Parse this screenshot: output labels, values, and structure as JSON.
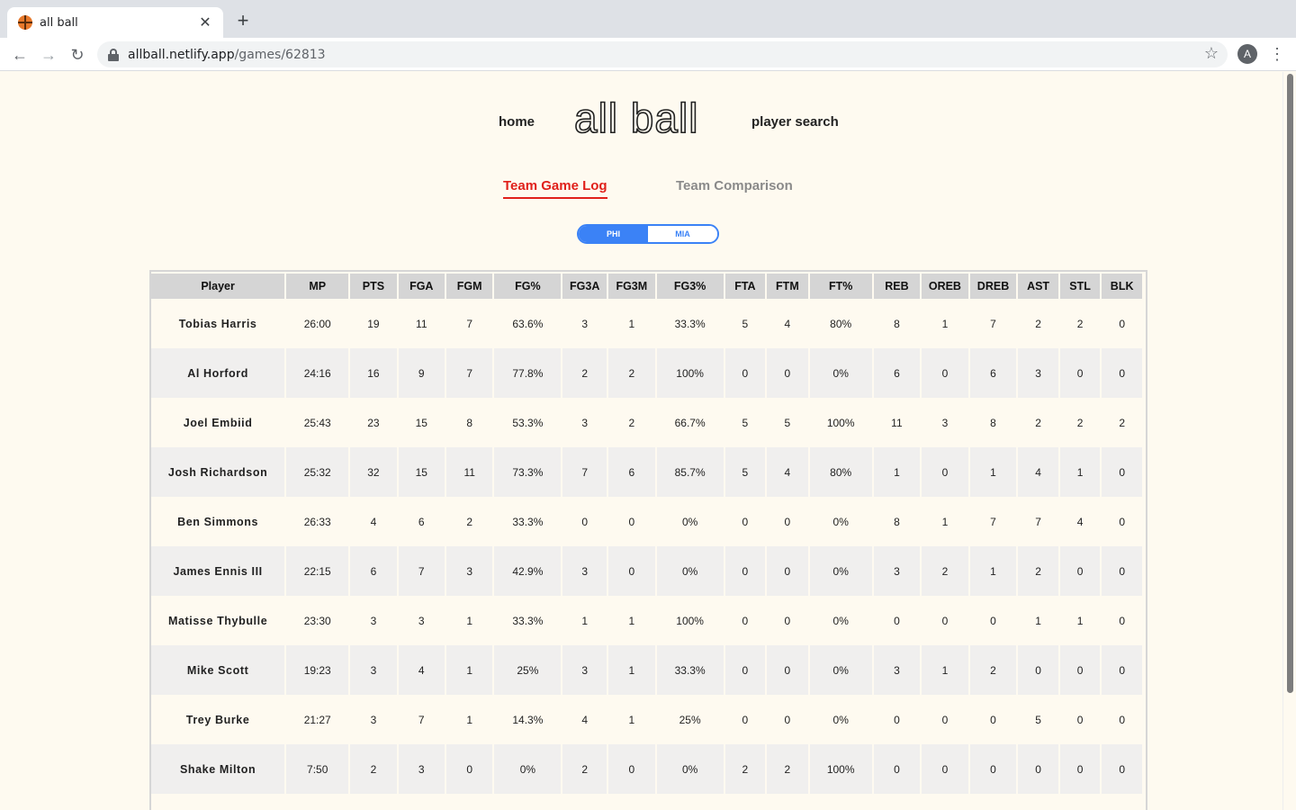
{
  "browser": {
    "tab_title": "all ball",
    "url_host": "allball.netlify.app",
    "url_path": "/games/62813",
    "avatar_letter": "A"
  },
  "header": {
    "home": "home",
    "logo": "all ball",
    "player_search": "player search"
  },
  "views": {
    "active": "Team Game Log",
    "inactive": "Team Comparison"
  },
  "toggle": {
    "selected": "PHI",
    "other": "MIA"
  },
  "table": {
    "columns": [
      "Player",
      "MP",
      "PTS",
      "FGA",
      "FGM",
      "FG%",
      "FG3A",
      "FG3M",
      "FG3%",
      "FTA",
      "FTM",
      "FT%",
      "REB",
      "OREB",
      "DREB",
      "AST",
      "STL",
      "BLK"
    ],
    "rows": [
      [
        "Tobias Harris",
        "26:00",
        "19",
        "11",
        "7",
        "63.6%",
        "3",
        "1",
        "33.3%",
        "5",
        "4",
        "80%",
        "8",
        "1",
        "7",
        "2",
        "2",
        "0"
      ],
      [
        "Al Horford",
        "24:16",
        "16",
        "9",
        "7",
        "77.8%",
        "2",
        "2",
        "100%",
        "0",
        "0",
        "0%",
        "6",
        "0",
        "6",
        "3",
        "0",
        "0"
      ],
      [
        "Joel Embiid",
        "25:43",
        "23",
        "15",
        "8",
        "53.3%",
        "3",
        "2",
        "66.7%",
        "5",
        "5",
        "100%",
        "11",
        "3",
        "8",
        "2",
        "2",
        "2"
      ],
      [
        "Josh Richardson",
        "25:32",
        "32",
        "15",
        "11",
        "73.3%",
        "7",
        "6",
        "85.7%",
        "5",
        "4",
        "80%",
        "1",
        "0",
        "1",
        "4",
        "1",
        "0"
      ],
      [
        "Ben Simmons",
        "26:33",
        "4",
        "6",
        "2",
        "33.3%",
        "0",
        "0",
        "0%",
        "0",
        "0",
        "0%",
        "8",
        "1",
        "7",
        "7",
        "4",
        "0"
      ],
      [
        "James Ennis III",
        "22:15",
        "6",
        "7",
        "3",
        "42.9%",
        "3",
        "0",
        "0%",
        "0",
        "0",
        "0%",
        "3",
        "2",
        "1",
        "2",
        "0",
        "0"
      ],
      [
        "Matisse Thybulle",
        "23:30",
        "3",
        "3",
        "1",
        "33.3%",
        "1",
        "1",
        "100%",
        "0",
        "0",
        "0%",
        "0",
        "0",
        "0",
        "1",
        "1",
        "0"
      ],
      [
        "Mike Scott",
        "19:23",
        "3",
        "4",
        "1",
        "25%",
        "3",
        "1",
        "33.3%",
        "0",
        "0",
        "0%",
        "3",
        "1",
        "2",
        "0",
        "0",
        "0"
      ],
      [
        "Trey Burke",
        "21:27",
        "3",
        "7",
        "1",
        "14.3%",
        "4",
        "1",
        "25%",
        "0",
        "0",
        "0%",
        "0",
        "0",
        "0",
        "5",
        "0",
        "0"
      ],
      [
        "Shake Milton",
        "7:50",
        "2",
        "3",
        "0",
        "0%",
        "2",
        "0",
        "0%",
        "2",
        "2",
        "100%",
        "0",
        "0",
        "0",
        "0",
        "0",
        "0"
      ]
    ]
  },
  "colors": {
    "active_tab": "#e0201b",
    "toggle_blue": "#3b82f6",
    "page_bg": "#fefaf0"
  }
}
